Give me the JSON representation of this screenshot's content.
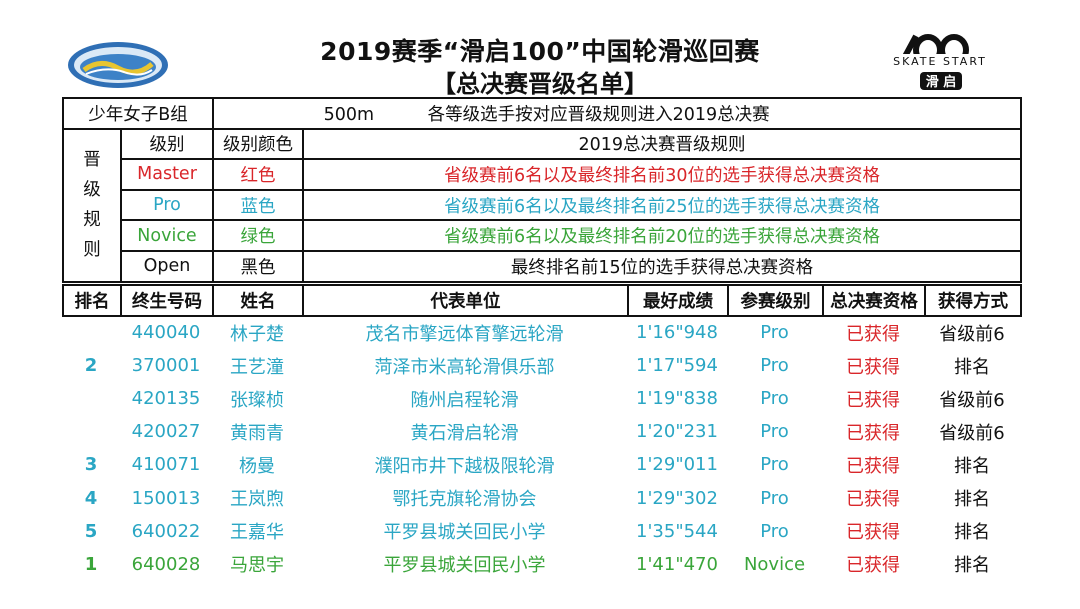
{
  "header": {
    "title": "2019赛季“滑启100”中国轮滑巡回赛",
    "subtitle": "【总决赛晋级名单】",
    "logo_right_text": "SKATE START",
    "logo_right_sub": "滑 启"
  },
  "group": {
    "name": "少年女子B组",
    "distance": "500m",
    "desc": "各等级选手按对应晋级规则进入2019总决赛"
  },
  "rules": {
    "side_label": [
      "晋",
      "级",
      "规",
      "则"
    ],
    "col_level": "级别",
    "col_color": "级别颜色",
    "col_rule": "2019总决赛晋级规则",
    "items": [
      {
        "level": "Master",
        "color": "红色",
        "rule": "省级赛前6名以及最终排名前30位的选手获得总决赛资格",
        "style": "red"
      },
      {
        "level": "Pro",
        "color": "蓝色",
        "rule": "省级赛前6名以及最终排名前25位的选手获得总决赛资格",
        "style": "blue"
      },
      {
        "level": "Novice",
        "color": "绿色",
        "rule": "省级赛前6名以及最终排名前20位的选手获得总决赛资格",
        "style": "green"
      },
      {
        "level": "Open",
        "color": "黑色",
        "rule": "最终排名前15位的选手获得总决赛资格",
        "style": "black"
      }
    ]
  },
  "table": {
    "headers": [
      "排名",
      "终生号码",
      "姓名",
      "代表单位",
      "最好成绩",
      "参赛级别",
      "总决赛资格",
      "获得方式"
    ],
    "rows": [
      {
        "rank": "",
        "id": "440040",
        "name": "林子楚",
        "unit": "茂名市擎远体育擎远轮滑",
        "time": "1'16\"948",
        "level": "Pro",
        "status": "已获得",
        "method": "省级前6"
      },
      {
        "rank": "2",
        "id": "370001",
        "name": "王艺潼",
        "unit": "菏泽市米高轮滑俱乐部",
        "time": "1'17\"594",
        "level": "Pro",
        "status": "已获得",
        "method": "排名"
      },
      {
        "rank": "",
        "id": "420135",
        "name": "张璨桢",
        "unit": "随州启程轮滑",
        "time": "1'19\"838",
        "level": "Pro",
        "status": "已获得",
        "method": "省级前6"
      },
      {
        "rank": "",
        "id": "420027",
        "name": "黄雨青",
        "unit": "黄石滑启轮滑",
        "time": "1'20\"231",
        "level": "Pro",
        "status": "已获得",
        "method": "省级前6"
      },
      {
        "rank": "3",
        "id": "410071",
        "name": "杨曼",
        "unit": "濮阳市井下越极限轮滑",
        "time": "1'29\"011",
        "level": "Pro",
        "status": "已获得",
        "method": "排名"
      },
      {
        "rank": "4",
        "id": "150013",
        "name": "王岚煦",
        "unit": "鄂托克旗轮滑协会",
        "time": "1'29\"302",
        "level": "Pro",
        "status": "已获得",
        "method": "排名"
      },
      {
        "rank": "5",
        "id": "640022",
        "name": "王嘉华",
        "unit": "平罗县城关回民小学",
        "time": "1'35\"544",
        "level": "Pro",
        "status": "已获得",
        "method": "排名"
      },
      {
        "rank": "1",
        "id": "640028",
        "name": "马思宇",
        "unit": "平罗县城关回民小学",
        "time": "1'41\"470",
        "level": "Novice",
        "status": "已获得",
        "method": "排名"
      }
    ]
  },
  "colors": {
    "red": "#d9262a",
    "blue": "#2aa6c4",
    "green": "#3aa53a",
    "black": "#111111"
  }
}
